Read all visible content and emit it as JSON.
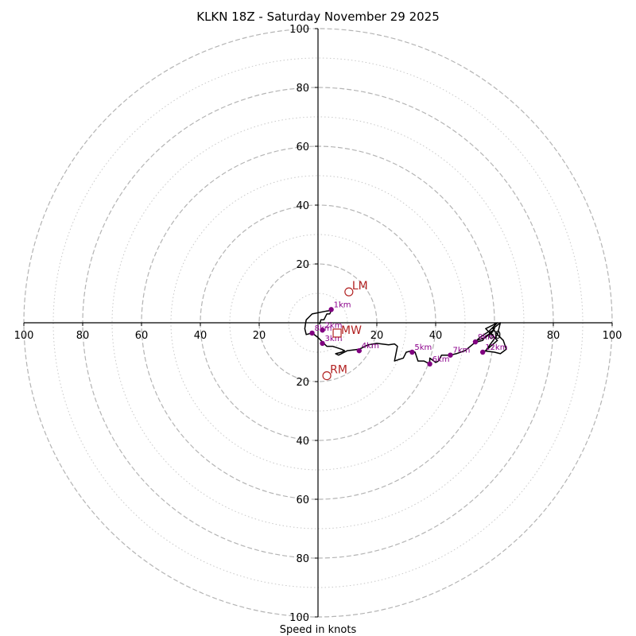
{
  "chart_data": {
    "type": "hodograph",
    "title": "KLKN 18Z - Saturday November 29 2025",
    "xlabel": "Speed in knots",
    "units": "knots",
    "axis_range": [
      -100,
      100
    ],
    "major_rings": [
      20,
      40,
      60,
      80,
      100
    ],
    "minor_rings": [
      10,
      30,
      50,
      70,
      90
    ],
    "tick_labels": {
      "x": [
        "100",
        "80",
        "60",
        "40",
        "20",
        "20",
        "40",
        "60",
        "80",
        "100"
      ],
      "y": [
        "100",
        "80",
        "60",
        "40",
        "20",
        "20",
        "40",
        "60",
        "80",
        "100"
      ]
    },
    "trace_color": "#000000",
    "marker_color": "#800080",
    "motion_color": "#b22222",
    "trace": [
      [
        0.5,
        -0.5
      ],
      [
        1,
        1
      ],
      [
        2,
        1
      ],
      [
        3,
        3
      ],
      [
        4,
        3
      ],
      [
        4.5,
        4.2
      ],
      [
        3,
        4
      ],
      [
        -2,
        3
      ],
      [
        -3,
        2
      ],
      [
        -4,
        1
      ],
      [
        -4.2,
        0
      ],
      [
        -4.5,
        -2
      ],
      [
        -4,
        -4
      ],
      [
        -2,
        -3.5
      ],
      [
        0,
        -5
      ],
      [
        1.5,
        -6.5
      ],
      [
        3,
        -8
      ],
      [
        5,
        -8
      ],
      [
        8,
        -9
      ],
      [
        9,
        -9.5
      ],
      [
        8,
        -10
      ],
      [
        6,
        -10.5
      ],
      [
        7,
        -11
      ],
      [
        10,
        -9.5
      ],
      [
        14,
        -9
      ],
      [
        17,
        -7.5
      ],
      [
        20,
        -7
      ],
      [
        24,
        -7.5
      ],
      [
        26,
        -7.2
      ],
      [
        27,
        -8
      ],
      [
        26,
        -13
      ],
      [
        29,
        -12
      ],
      [
        30,
        -10
      ],
      [
        32,
        -9.5
      ],
      [
        33,
        -10
      ],
      [
        34,
        -13
      ],
      [
        36,
        -13
      ],
      [
        38,
        -14
      ],
      [
        38,
        -12
      ],
      [
        40,
        -13.5
      ],
      [
        41,
        -13
      ],
      [
        42,
        -11
      ],
      [
        45,
        -11
      ],
      [
        47,
        -10.5
      ],
      [
        50,
        -9.5
      ],
      [
        53,
        -7
      ],
      [
        54,
        -6.5
      ],
      [
        56,
        -6
      ],
      [
        57,
        -4.5
      ],
      [
        59,
        -3.5
      ],
      [
        60,
        -2
      ],
      [
        57,
        -5
      ],
      [
        54,
        -6
      ],
      [
        55,
        -5
      ],
      [
        58,
        -3
      ],
      [
        61,
        0
      ],
      [
        57,
        -2
      ],
      [
        61,
        -6
      ],
      [
        57,
        -9.5
      ],
      [
        61,
        -4
      ],
      [
        62,
        0
      ],
      [
        59.5,
        -2
      ],
      [
        61,
        -4
      ],
      [
        63,
        -6
      ],
      [
        64,
        -9
      ],
      [
        62,
        -10.5
      ],
      [
        60,
        -10
      ],
      [
        56,
        -9.5
      ]
    ],
    "km_markers": [
      {
        "label": "1km",
        "u": 4.5,
        "v": 4.5
      },
      {
        "label": "2km",
        "u": 1.5,
        "v": -2.5
      },
      {
        "label": "3km",
        "u": 1.5,
        "v": -7
      },
      {
        "label": "4km",
        "u": 14,
        "v": -9.5
      },
      {
        "label": "5km",
        "u": 32,
        "v": -10
      },
      {
        "label": "6km",
        "u": 38,
        "v": -14
      },
      {
        "label": "7km",
        "u": 45,
        "v": -11
      },
      {
        "label": "9km",
        "u": 53.5,
        "v": -6.5
      },
      {
        "label": "12km",
        "u": 56,
        "v": -10
      },
      {
        "label": "8km",
        "u": -2,
        "v": -3.5
      }
    ],
    "storm_motions": {
      "lm": {
        "label": "LM",
        "u": 10.5,
        "v": 10.5
      },
      "rm": {
        "label": "RM",
        "u": 3,
        "v": -18
      },
      "mw": {
        "label": "MW",
        "u": 6.5,
        "v": -3.5
      }
    }
  }
}
